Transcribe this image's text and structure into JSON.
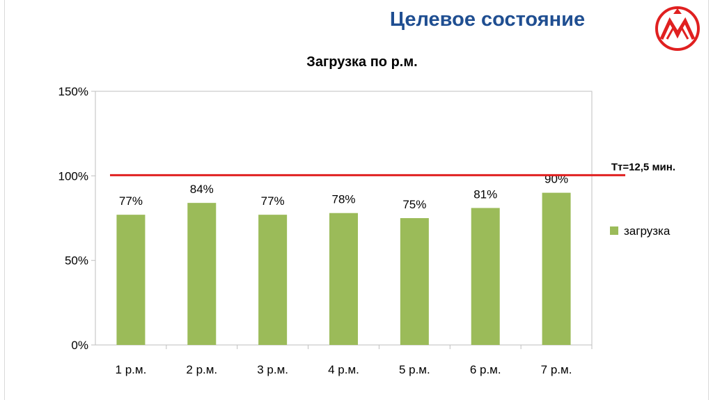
{
  "slide": {
    "title": "Целевое состояние",
    "title_color": "#1f4e91",
    "logo_icon": "mountain-logo-icon",
    "logo_color": "#e02020"
  },
  "chart_data": {
    "type": "bar",
    "title": "Загрузка по р.м.",
    "categories": [
      "1 р.м.",
      "2 р.м.",
      "3 р.м.",
      "4 р.м.",
      "5 р.м.",
      "6 р.м.",
      "7 р.м."
    ],
    "series": [
      {
        "name": "загрузка",
        "values": [
          77,
          84,
          77,
          78,
          75,
          81,
          90
        ],
        "labels": [
          "77%",
          "84%",
          "77%",
          "78%",
          "75%",
          "81%",
          "90%"
        ],
        "color": "#9bbb59"
      }
    ],
    "yticks": [
      0,
      50,
      100,
      150
    ],
    "ytick_labels": [
      "0%",
      "50%",
      "100%",
      "150%"
    ],
    "ylim": [
      0,
      150
    ],
    "reference_line": {
      "value": 100,
      "label": "Тт=12,5 мин.",
      "color": "#e02020"
    },
    "legend_position": "right",
    "grid": false
  }
}
